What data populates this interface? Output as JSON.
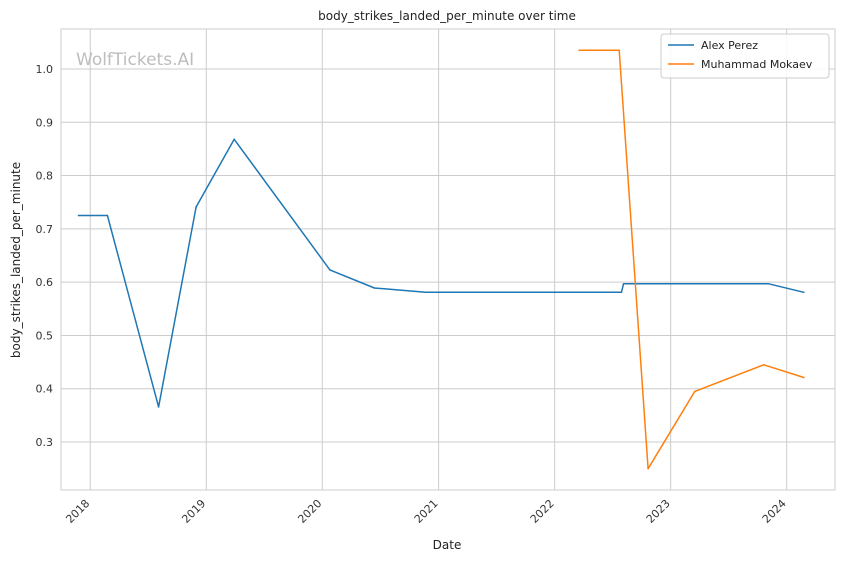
{
  "chart_data": {
    "type": "line",
    "title": "body_strikes_landed_per_minute over time",
    "xlabel": "Date",
    "ylabel": "body_strikes_landed_per_minute",
    "watermark": "WolfTickets.AI",
    "xlim": [
      "2017-10-01",
      "2024-06-01"
    ],
    "ylim": [
      0.21,
      1.075
    ],
    "x_ticks": [
      "2018",
      "2019",
      "2020",
      "2021",
      "2022",
      "2023",
      "2024"
    ],
    "y_ticks": [
      0.3,
      0.4,
      0.5,
      0.6,
      0.7,
      0.8,
      0.9,
      1.0
    ],
    "y_tick_labels": [
      "0.3",
      "0.4",
      "0.5",
      "0.6",
      "0.7",
      "0.8",
      "0.9",
      "1.0"
    ],
    "grid": true,
    "legend_position": "top-right",
    "series": [
      {
        "name": "Alex Perez",
        "color": "#1f77b4",
        "points": [
          [
            "2017-11-25",
            0.725
          ],
          [
            "2018-02-24",
            0.725
          ],
          [
            "2018-08-04",
            0.366
          ],
          [
            "2018-11-30",
            0.741
          ],
          [
            "2019-03-30",
            0.868
          ],
          [
            "2020-01-25",
            0.623
          ],
          [
            "2020-06-13",
            0.589
          ],
          [
            "2020-11-21",
            0.581
          ],
          [
            "2022-07-30",
            0.581
          ],
          [
            "2022-08-06",
            0.597
          ],
          [
            "2023-11-04",
            0.597
          ],
          [
            "2024-02-24",
            0.581
          ]
        ]
      },
      {
        "name": "Muhammad Mokaev",
        "color": "#ff7f0e",
        "points": [
          [
            "2022-03-19",
            1.035
          ],
          [
            "2022-07-23",
            1.035
          ],
          [
            "2022-10-22",
            0.25
          ],
          [
            "2023-03-18",
            0.395
          ],
          [
            "2023-10-21",
            0.445
          ],
          [
            "2024-02-24",
            0.421
          ]
        ]
      }
    ]
  }
}
